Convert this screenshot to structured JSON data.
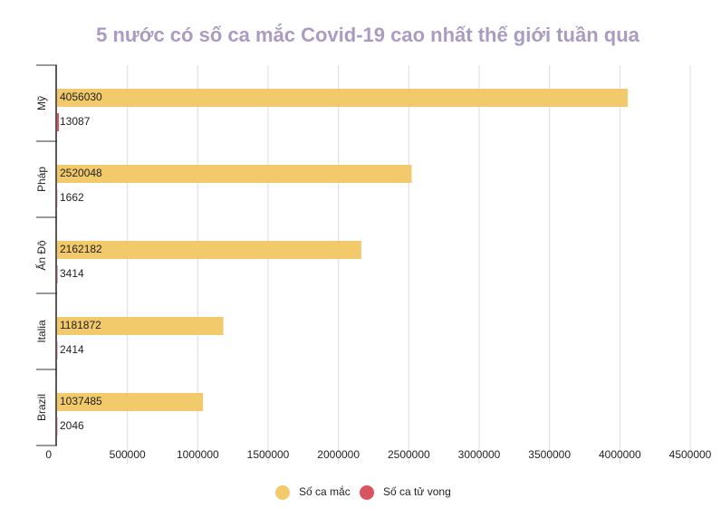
{
  "chart_data": {
    "type": "hbar",
    "title": "5 nước có số ca mắc Covid-19 cao nhất thế giới tuần qua",
    "categories": [
      "Mỹ",
      "Pháp",
      "Ấn Độ",
      "Italia",
      "Brazil"
    ],
    "series": [
      {
        "name": "Số ca mắc",
        "color": "#f2c96b",
        "values": [
          4056030,
          2520048,
          2162182,
          1181872,
          1037485
        ]
      },
      {
        "name": "Số ca tử vong",
        "color": "#d9545f",
        "values": [
          13087,
          1662,
          3414,
          2414,
          2046
        ]
      }
    ],
    "xlim": [
      0,
      4500000
    ],
    "xticks": [
      0,
      500000,
      1000000,
      1500000,
      2000000,
      2500000,
      3000000,
      3500000,
      4000000,
      4500000
    ],
    "grid": true
  }
}
